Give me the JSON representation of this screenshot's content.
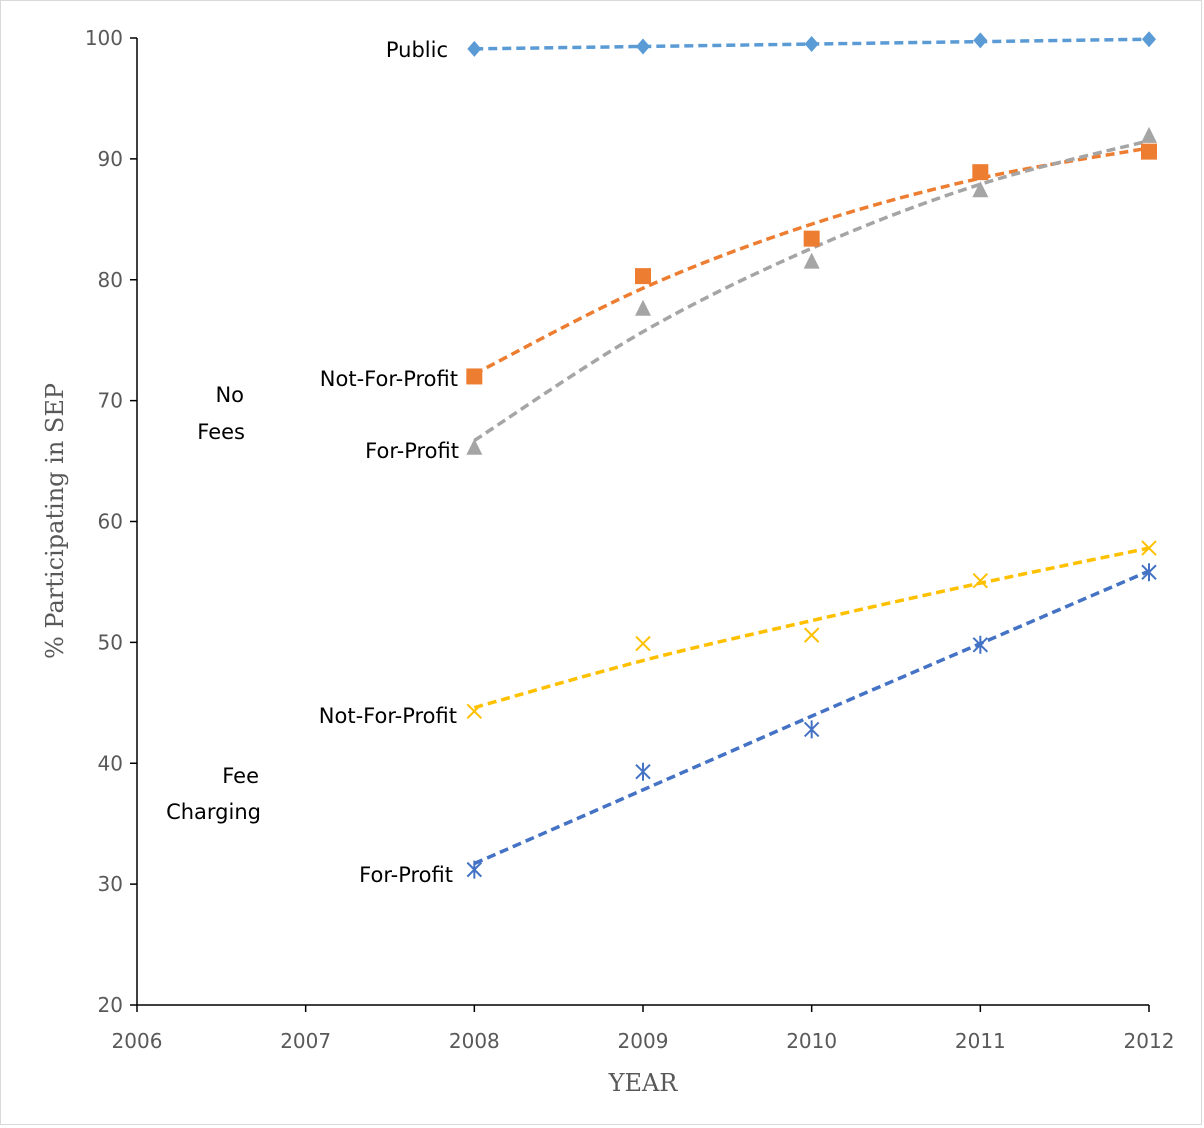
{
  "chart_data": {
    "type": "scatter",
    "title": "",
    "xlabel": "YEAR",
    "ylabel": "% Participating in SEP",
    "xlim": [
      2006,
      2012
    ],
    "ylim": [
      20,
      100
    ],
    "xticks": [
      2006,
      2007,
      2008,
      2009,
      2010,
      2011,
      2012
    ],
    "yticks": [
      20,
      30,
      40,
      50,
      60,
      70,
      80,
      90,
      100
    ],
    "grid": false,
    "legend": "none",
    "trendlines": "dashed polynomial fit per series",
    "series": [
      {
        "key": "public",
        "color": "#5b9bd5",
        "marker": "diamond",
        "x": [
          2008,
          2009,
          2010,
          2011,
          2012
        ],
        "y": [
          99.1,
          99.3,
          99.5,
          99.8,
          99.9
        ],
        "trend": [
          99.1,
          99.3,
          99.5,
          99.7,
          99.9
        ]
      },
      {
        "key": "nofee_nfp",
        "color": "#ed7d31",
        "marker": "square",
        "x": [
          2008,
          2009,
          2010,
          2011,
          2012
        ],
        "y": [
          72.0,
          80.3,
          83.4,
          88.9,
          90.6
        ],
        "trend": [
          72.2,
          79.3,
          84.6,
          88.4,
          90.9
        ]
      },
      {
        "key": "nofee_fp",
        "color": "#a5a5a5",
        "marker": "triangle",
        "x": [
          2008,
          2009,
          2010,
          2011,
          2012
        ],
        "y": [
          66.1,
          77.6,
          81.5,
          87.4,
          91.9
        ],
        "trend": [
          66.7,
          75.7,
          82.6,
          87.9,
          91.5
        ]
      },
      {
        "key": "fee_nfp",
        "color": "#ffc000",
        "marker": "x",
        "x": [
          2008,
          2009,
          2010,
          2011,
          2012
        ],
        "y": [
          44.3,
          49.9,
          50.6,
          55.1,
          57.8
        ],
        "trend": [
          44.6,
          48.5,
          51.8,
          54.9,
          57.8
        ]
      },
      {
        "key": "fee_fp",
        "color": "#4472c4",
        "marker": "star",
        "x": [
          2008,
          2009,
          2010,
          2011,
          2012
        ],
        "y": [
          31.2,
          39.3,
          42.8,
          49.8,
          55.8
        ],
        "trend": [
          31.7,
          37.8,
          43.9,
          49.9,
          55.9
        ]
      }
    ],
    "annotations": {
      "public": "Public",
      "nofee_nfp": "Not-For-Profit",
      "nofee_fp": "For-Profit",
      "no_fees_1": "No",
      "no_fees_2": "Fees",
      "fee_nfp": "Not-For-Profit",
      "fee_fp": "For-Profit",
      "fee_charging_1": "Fee",
      "fee_charging_2": "Charging"
    }
  }
}
